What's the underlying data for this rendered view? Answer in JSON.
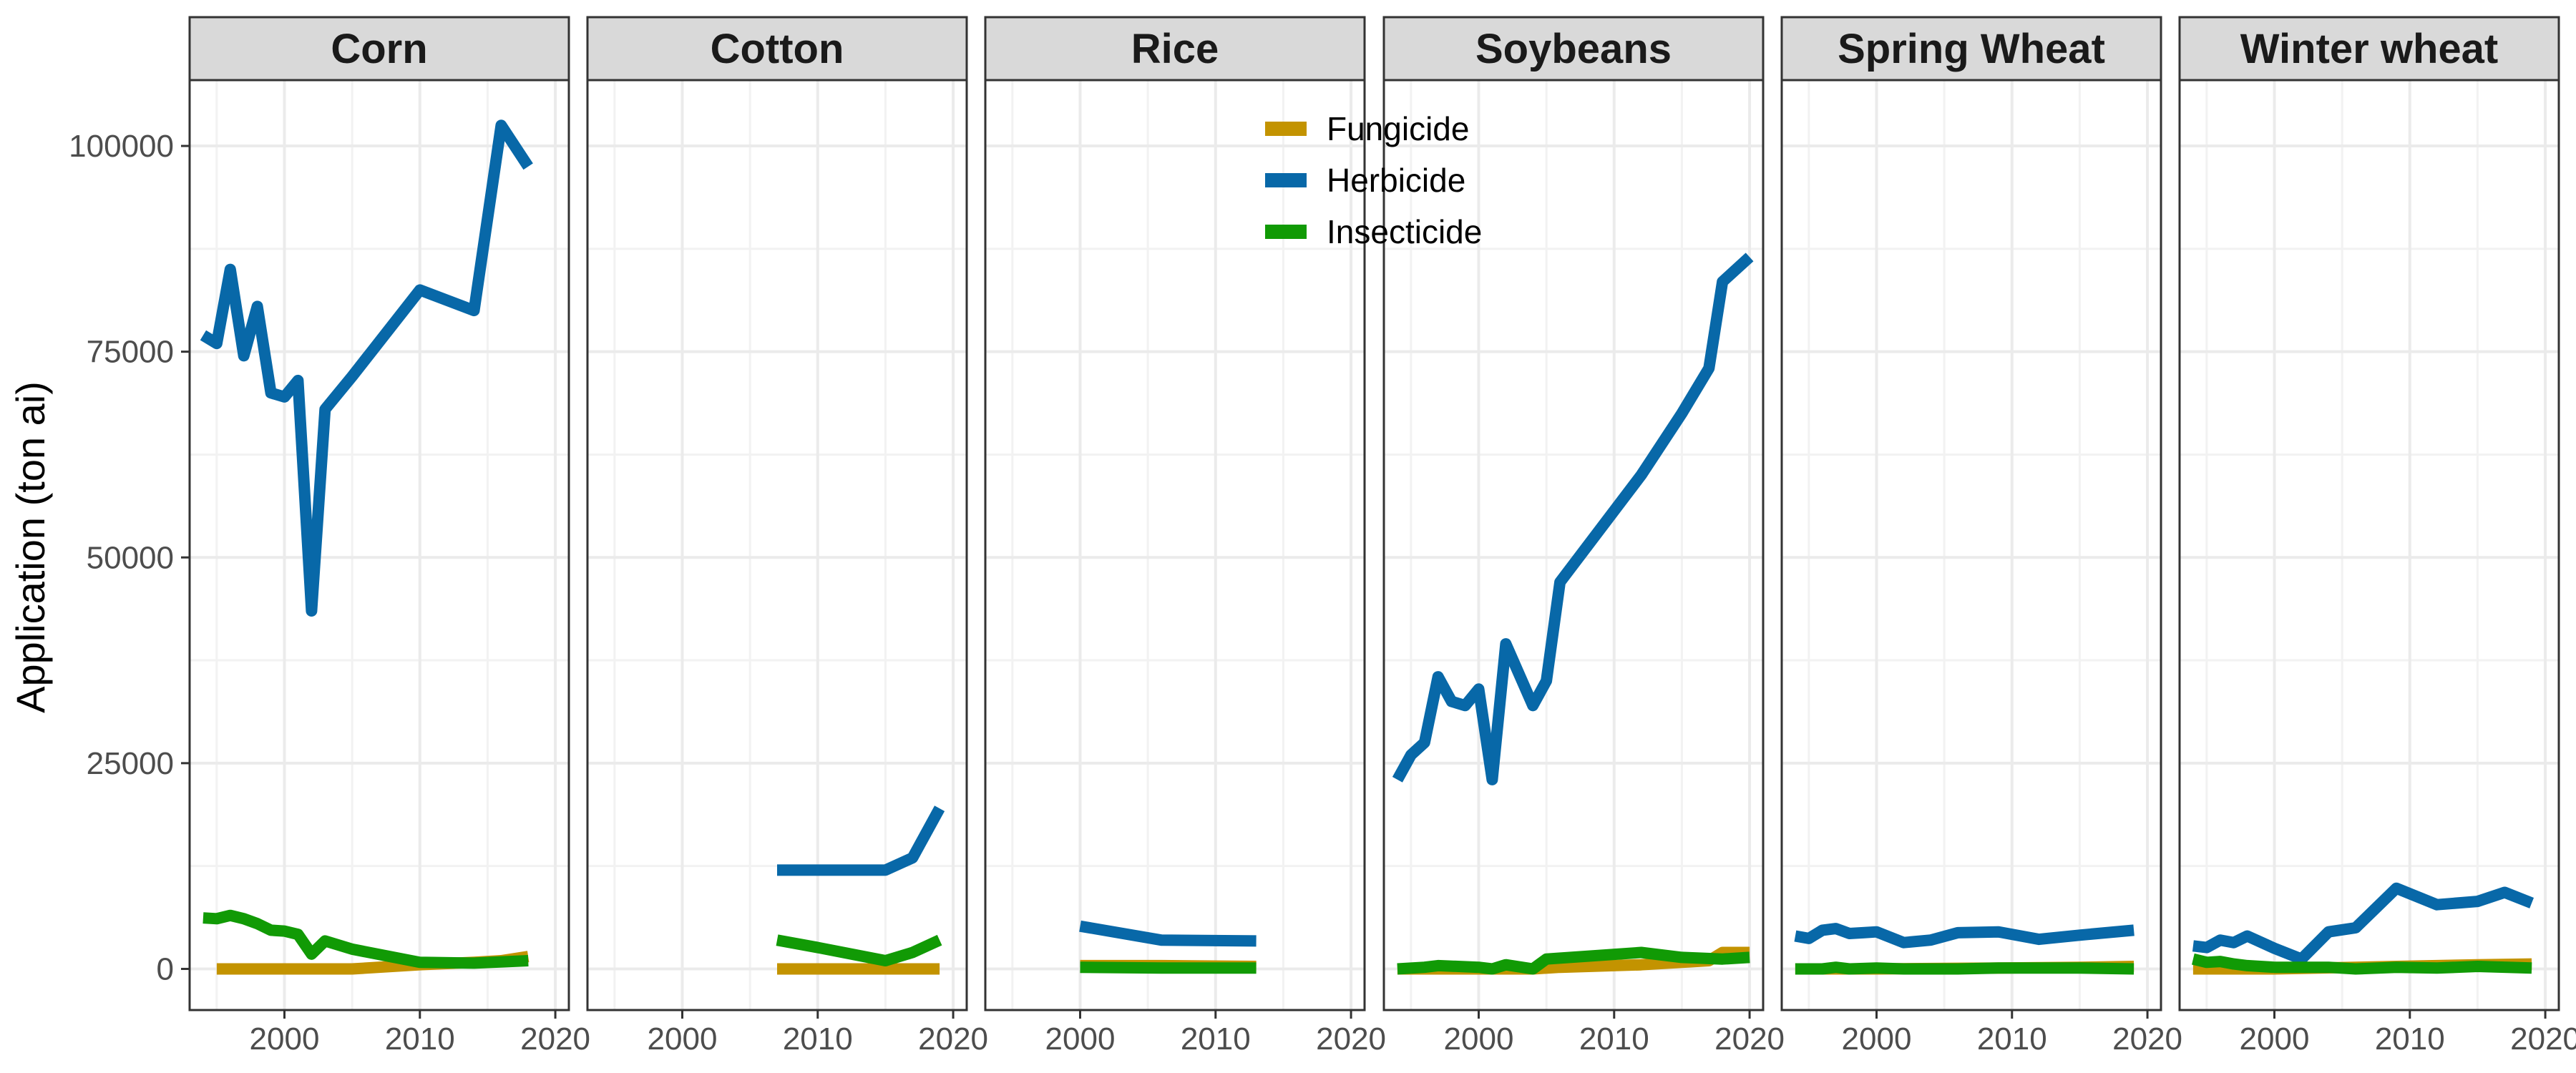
{
  "chart_data": {
    "type": "line",
    "ylabel": "Application (ton ai)",
    "xlim": [
      1993,
      2021
    ],
    "ylim": [
      -5000,
      108000
    ],
    "x_ticks": [
      2000,
      2010,
      2020
    ],
    "y_ticks": [
      0,
      25000,
      50000,
      75000,
      100000
    ],
    "x_tick_labels": [
      "2000",
      "2010",
      "2020"
    ],
    "y_tick_labels": [
      "0",
      "25000",
      "50000",
      "75000",
      "100000"
    ],
    "legend": {
      "position": "top-center",
      "entries": [
        {
          "name": "Fungicide",
          "color": "#C39300"
        },
        {
          "name": "Herbicide",
          "color": "#0868A8"
        },
        {
          "name": "Insecticide",
          "color": "#119A05"
        }
      ]
    },
    "panels": [
      {
        "name": "Corn",
        "series": [
          {
            "name": "Fungicide",
            "x": [
              1995,
              2000,
              2005,
              2010,
              2014,
              2016,
              2018
            ],
            "y": [
              0,
              0,
              0,
              500,
              800,
              1000,
              1500
            ]
          },
          {
            "name": "Herbicide",
            "x": [
              1994,
              1995,
              1996,
              1997,
              1998,
              1999,
              2000,
              2001,
              2002,
              2003,
              2005,
              2010,
              2014,
              2016,
              2018
            ],
            "y": [
              77000,
              76000,
              85000,
              74500,
              80500,
              70000,
              69500,
              71500,
              43500,
              68000,
              72000,
              82500,
              80000,
              102500,
              97500
            ]
          },
          {
            "name": "Insecticide",
            "x": [
              1994,
              1995,
              1996,
              1997,
              1998,
              1999,
              2000,
              2001,
              2002,
              2003,
              2005,
              2010,
              2014,
              2018
            ],
            "y": [
              6200,
              6100,
              6500,
              6100,
              5500,
              4700,
              4600,
              4200,
              1800,
              3400,
              2400,
              800,
              700,
              1000
            ]
          }
        ]
      },
      {
        "name": "Cotton",
        "series": [
          {
            "name": "Fungicide",
            "x": [
              2007,
              2010,
              2015,
              2019
            ],
            "y": [
              0,
              0,
              0,
              0
            ]
          },
          {
            "name": "Herbicide",
            "x": [
              2007,
              2010,
              2015,
              2017,
              2019
            ],
            "y": [
              12000,
              12000,
              12000,
              13500,
              19500
            ]
          },
          {
            "name": "Insecticide",
            "x": [
              2007,
              2010,
              2015,
              2017,
              2019
            ],
            "y": [
              3500,
              2600,
              1000,
              2000,
              3500
            ]
          }
        ]
      },
      {
        "name": "Rice",
        "series": [
          {
            "name": "Fungicide",
            "x": [
              2000,
              2006,
              2013
            ],
            "y": [
              400,
              400,
              300
            ]
          },
          {
            "name": "Herbicide",
            "x": [
              2000,
              2006,
              2013
            ],
            "y": [
              5200,
              3500,
              3400
            ]
          },
          {
            "name": "Insecticide",
            "x": [
              2000,
              2006,
              2013
            ],
            "y": [
              200,
              100,
              100
            ]
          }
        ]
      },
      {
        "name": "Soybeans",
        "series": [
          {
            "name": "Fungicide",
            "x": [
              1994,
              2000,
              2004,
              2006,
              2012,
              2017,
              2018,
              2020
            ],
            "y": [
              0,
              0,
              0,
              200,
              500,
              1000,
              2000,
              2000
            ]
          },
          {
            "name": "Herbicide",
            "x": [
              1994,
              1995,
              1996,
              1997,
              1998,
              1999,
              2000,
              2001,
              2002,
              2004,
              2005,
              2006,
              2012,
              2015,
              2017,
              2018,
              2020
            ],
            "y": [
              23000,
              26000,
              27500,
              35500,
              32500,
              32000,
              34000,
              23000,
              39500,
              32000,
              35000,
              47000,
              60000,
              67500,
              73000,
              83500,
              86500
            ]
          },
          {
            "name": "Insecticide",
            "x": [
              1994,
              1996,
              1997,
              2000,
              2001,
              2002,
              2004,
              2005,
              2012,
              2015,
              2018,
              2020
            ],
            "y": [
              0,
              200,
              400,
              200,
              0,
              500,
              0,
              1200,
              2000,
              1400,
              1200,
              1400
            ]
          }
        ]
      },
      {
        "name": "Spring Wheat",
        "series": [
          {
            "name": "Fungicide",
            "x": [
              1994,
              2000,
              2009,
              2015,
              2019
            ],
            "y": [
              0,
              0,
              100,
              200,
              300
            ]
          },
          {
            "name": "Herbicide",
            "x": [
              1994,
              1995,
              1996,
              1997,
              1998,
              1999,
              2000,
              2002,
              2004,
              2006,
              2009,
              2012,
              2015,
              2019
            ],
            "y": [
              4000,
              3700,
              4700,
              4900,
              4300,
              4400,
              4500,
              3200,
              3500,
              4400,
              4500,
              3600,
              4100,
              4700
            ]
          },
          {
            "name": "Insecticide",
            "x": [
              1994,
              1996,
              1997,
              1998,
              2000,
              2002,
              2006,
              2009,
              2012,
              2015,
              2019
            ],
            "y": [
              0,
              0,
              200,
              0,
              100,
              0,
              0,
              100,
              100,
              100,
              0
            ]
          }
        ]
      },
      {
        "name": "Winter wheat",
        "series": [
          {
            "name": "Fungicide",
            "x": [
              1994,
              1995,
              2000,
              2009,
              2012,
              2015,
              2019
            ],
            "y": [
              0,
              0,
              0,
              300,
              400,
              500,
              600
            ]
          },
          {
            "name": "Herbicide",
            "x": [
              1994,
              1995,
              1996,
              1997,
              1998,
              2000,
              2002,
              2004,
              2006,
              2009,
              2012,
              2015,
              2017,
              2019
            ],
            "y": [
              2800,
              2600,
              3500,
              3200,
              4000,
              2500,
              1200,
              4500,
              5000,
              9800,
              7800,
              8200,
              9300,
              8000
            ]
          },
          {
            "name": "Insecticide",
            "x": [
              1994,
              1995,
              1996,
              1997,
              1998,
              2000,
              2002,
              2004,
              2006,
              2009,
              2012,
              2015,
              2019
            ],
            "y": [
              1200,
              800,
              900,
              600,
              400,
              200,
              200,
              200,
              0,
              200,
              100,
              300,
              100
            ]
          }
        ]
      }
    ]
  }
}
